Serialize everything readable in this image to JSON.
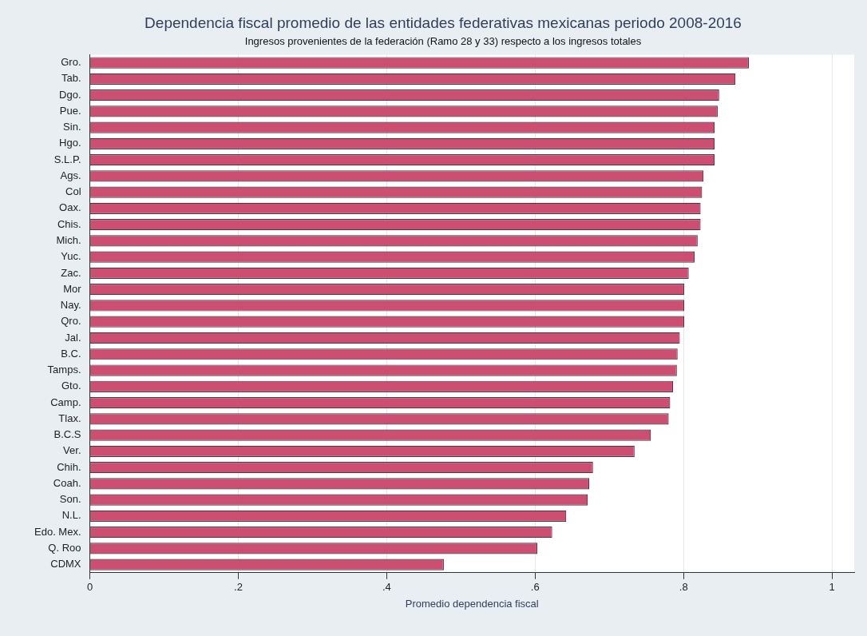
{
  "chart_data": {
    "type": "bar",
    "orientation": "horizontal",
    "title": "Dependencia fiscal promedio de las entidades federativas mexicanas periodo 2008-2016",
    "subtitle": "Ingresos provenientes de la federación (Ramo 28 y 33) respecto a los ingresos totales",
    "xlabel": "Promedio dependencia fiscal",
    "categories": [
      "Gro.",
      "Tab.",
      "Dgo.",
      "Pue.",
      "Sin.",
      "Hgo.",
      "S.L.P.",
      "Ags.",
      "Col",
      "Oax.",
      "Chis.",
      "Mich.",
      "Yuc.",
      "Zac.",
      "Mor",
      "Nay.",
      "Qro.",
      "Jal.",
      "B.C.",
      "Tamps.",
      "Gto.",
      "Camp.",
      "Tlax.",
      "B.C.S",
      "Ver.",
      "Chih.",
      "Coah.",
      "Son.",
      "N.L.",
      "Edo. Mex.",
      "Q. Roo",
      "CDMX"
    ],
    "values": [
      0.888,
      0.87,
      0.848,
      0.846,
      0.842,
      0.842,
      0.842,
      0.827,
      0.825,
      0.823,
      0.823,
      0.819,
      0.815,
      0.807,
      0.801,
      0.801,
      0.801,
      0.795,
      0.792,
      0.791,
      0.786,
      0.782,
      0.78,
      0.756,
      0.734,
      0.678,
      0.673,
      0.671,
      0.642,
      0.623,
      0.603,
      0.477
    ],
    "color": "#cc4f72",
    "xlim": [
      0,
      1.03
    ],
    "xticks": [
      0,
      {
        "value": 0.2,
        "label": ".2"
      },
      {
        "value": 0.4,
        "label": ".4"
      },
      {
        "value": 0.6,
        "label": ".6"
      },
      {
        "value": 0.8,
        "label": ".8"
      },
      1
    ],
    "grid": "x"
  }
}
